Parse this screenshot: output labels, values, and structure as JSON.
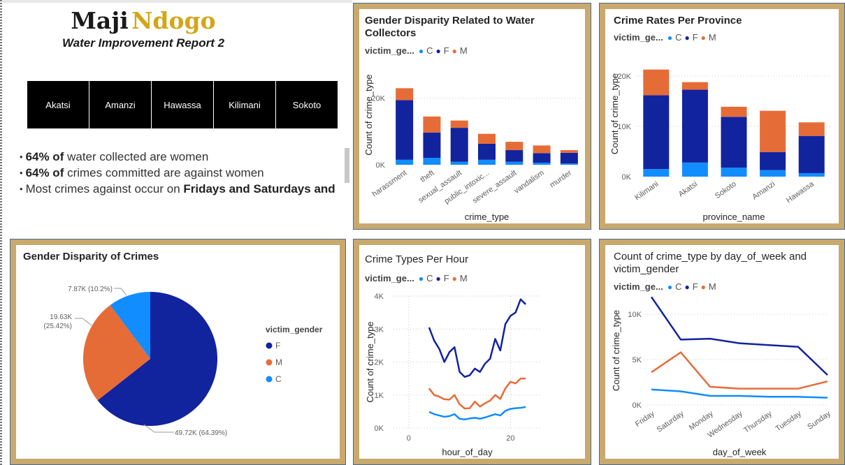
{
  "header": {
    "title_part1": "Maji",
    "title_part2": "Ndogo",
    "subtitle": "Water Improvement Report 2"
  },
  "slicer": [
    "Akatsi",
    "Amanzi",
    "Hawassa",
    "Kilimani",
    "Sokoto"
  ],
  "bullets": [
    {
      "bold": "64% of",
      "text": " water collected are women",
      "bold2": ""
    },
    {
      "bold": "64% of",
      "text": " crimes committed are against women",
      "bold2": ""
    },
    {
      "bold": "",
      "text": "Most crimes against occur on ",
      "bold2": "Fridays and Saturdays and"
    }
  ],
  "colors": {
    "C": "#118dff",
    "F": "#12239e",
    "M": "#e66c37",
    "panel": "#c8a96e"
  },
  "legend": {
    "title": "victim_ge...",
    "items": [
      "C",
      "F",
      "M"
    ]
  },
  "chart_data": [
    {
      "id": "gender-disparity-water",
      "type": "bar",
      "stacked": true,
      "title": "Gender Disparity Related to Water Collectors",
      "xlabel": "crime_type",
      "ylabel": "Count of crime_type",
      "categories": [
        "harassment",
        "theft",
        "sexual_assault",
        "public_intoxic...",
        "severe_assault",
        "vandalism",
        "murder"
      ],
      "series": [
        {
          "name": "C",
          "values": [
            1500,
            2100,
            900,
            1500,
            900,
            600,
            400
          ]
        },
        {
          "name": "F",
          "values": [
            17900,
            7600,
            10200,
            4800,
            3500,
            2900,
            3200
          ]
        },
        {
          "name": "M",
          "values": [
            3600,
            4800,
            2200,
            3000,
            2500,
            2300,
            800
          ]
        }
      ],
      "ylim": [
        0,
        30000
      ],
      "yticks": [
        0,
        20000
      ],
      "ytick_labels": [
        "0K",
        "20K"
      ]
    },
    {
      "id": "crime-rates-province",
      "type": "bar",
      "stacked": true,
      "title": "Crime Rates Per Province",
      "xlabel": "province_name",
      "ylabel": "Count of crime_type",
      "categories": [
        "Kilimani",
        "Akatsi",
        "Sokoto",
        "Amanzi",
        "Hawassa"
      ],
      "series": [
        {
          "name": "C",
          "values": [
            1500,
            2800,
            1800,
            1300,
            700
          ]
        },
        {
          "name": "F",
          "values": [
            14700,
            14500,
            10100,
            3600,
            7400
          ]
        },
        {
          "name": "M",
          "values": [
            5100,
            1500,
            2000,
            8200,
            2700
          ]
        }
      ],
      "ylim": [
        0,
        25000
      ],
      "yticks": [
        0,
        10000,
        20000
      ],
      "ytick_labels": [
        "0K",
        "10K",
        "20K"
      ]
    },
    {
      "id": "gender-disparity-crimes",
      "type": "pie",
      "title": "Gender Disparity of Crimes",
      "legend_title": "victim_gender",
      "slices": [
        {
          "name": "F",
          "value": 49720,
          "label": "49.72K (64.39%)"
        },
        {
          "name": "M",
          "value": 19630,
          "label_line1": "19.63K",
          "label_line2": "(25.42%)"
        },
        {
          "name": "C",
          "value": 7870,
          "label": "7.87K (10.2%)"
        }
      ]
    },
    {
      "id": "crime-types-per-hour",
      "type": "line",
      "title": "Crime Types Per Hour",
      "xlabel": "hour_of_day",
      "ylabel": "Count of crime_type",
      "x": [
        4,
        5,
        6,
        7,
        8,
        9,
        10,
        11,
        12,
        13,
        14,
        15,
        16,
        17,
        18,
        19,
        20,
        21,
        22,
        23
      ],
      "series": [
        {
          "name": "F",
          "values": [
            3050,
            2650,
            2400,
            2000,
            2300,
            2450,
            1700,
            1550,
            1600,
            1800,
            1700,
            1950,
            2100,
            2700,
            2350,
            3150,
            3400,
            3500,
            3900,
            3750
          ]
        },
        {
          "name": "M",
          "values": [
            1200,
            1000,
            950,
            870,
            860,
            1000,
            720,
            590,
            600,
            800,
            650,
            750,
            830,
            1000,
            880,
            1200,
            1400,
            1350,
            1500,
            1500
          ]
        },
        {
          "name": "C",
          "values": [
            490,
            420,
            380,
            340,
            360,
            420,
            280,
            260,
            290,
            310,
            280,
            320,
            370,
            420,
            380,
            520,
            580,
            600,
            610,
            640
          ]
        }
      ],
      "xlim": [
        -3,
        26
      ],
      "xticks": [
        0,
        20
      ],
      "ylim": [
        0,
        4000
      ],
      "yticks": [
        0,
        1000,
        2000,
        3000,
        4000
      ],
      "ytick_labels": [
        "0K",
        "1K",
        "2K",
        "3K",
        "4K"
      ]
    },
    {
      "id": "crime-by-day-of-week",
      "type": "line",
      "title": "Count of crime_type by day_of_week and victim_gender",
      "xlabel": "day_of_week",
      "ylabel": "Count of crime_type",
      "categories": [
        "Friday",
        "Saturday",
        "Monday",
        "Wednesday",
        "Thursday",
        "Tuesday",
        "Sunday"
      ],
      "series": [
        {
          "name": "F",
          "values": [
            11900,
            7200,
            7300,
            6800,
            6600,
            6400,
            3300
          ]
        },
        {
          "name": "M",
          "values": [
            3600,
            5800,
            2000,
            1800,
            1800,
            1800,
            2600
          ]
        },
        {
          "name": "C",
          "values": [
            1700,
            1500,
            1000,
            1000,
            900,
            900,
            800
          ]
        }
      ],
      "ylim": [
        0,
        12000
      ],
      "yticks": [
        0,
        5000,
        10000
      ],
      "ytick_labels": [
        "0K",
        "5K",
        "10K"
      ]
    }
  ]
}
